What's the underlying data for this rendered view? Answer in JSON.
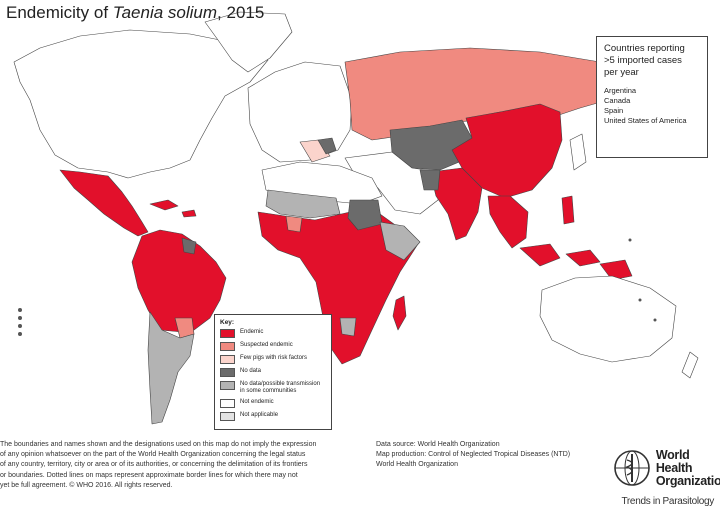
{
  "title": {
    "prefix": "Endemicity of ",
    "species": "Taenia solium",
    "suffix": ", 2015"
  },
  "inset": {
    "heading": [
      "Countries reporting",
      ">5 imported cases",
      "per year"
    ],
    "countries": [
      "Argentina",
      "Canada",
      "Spain",
      "United States of America"
    ]
  },
  "key": {
    "title": "Key:",
    "items": [
      {
        "label": "Endemic",
        "color": "#e2102b"
      },
      {
        "label": "Suspected endemic",
        "color": "#f08a80"
      },
      {
        "label": "Few pigs with risk factors",
        "color": "#fbd4cc"
      },
      {
        "label": "No data",
        "color": "#6b6b6b"
      },
      {
        "label": "No data/possible transmission in some communities",
        "color": "#b3b3b3"
      },
      {
        "label": "Not endemic",
        "color": "#ffffff"
      },
      {
        "label": "Not applicable",
        "color": "#e3e3e3"
      }
    ]
  },
  "disclaimer": [
    "The boundaries and names shown and the designations used on this map do not imply the expression",
    "of any opinion whatsoever on the part of the World Health Organization concerning the legal status",
    "of any country, territory, city or area or of its authorities, or concerning the delimitation of its frontiers",
    "or boundaries. Dotted lines on maps represent approximate border lines for which there may not",
    "yet be full agreement. © WHO 2016. All rights reserved."
  ],
  "credits": [
    "Data source: World Health Organization",
    "Map production: Control of Neglected Tropical Diseases (NTD)",
    "World Health Organization"
  ],
  "logo": [
    "World Health",
    "Organization"
  ],
  "journal": "Trends in Parasitology"
}
